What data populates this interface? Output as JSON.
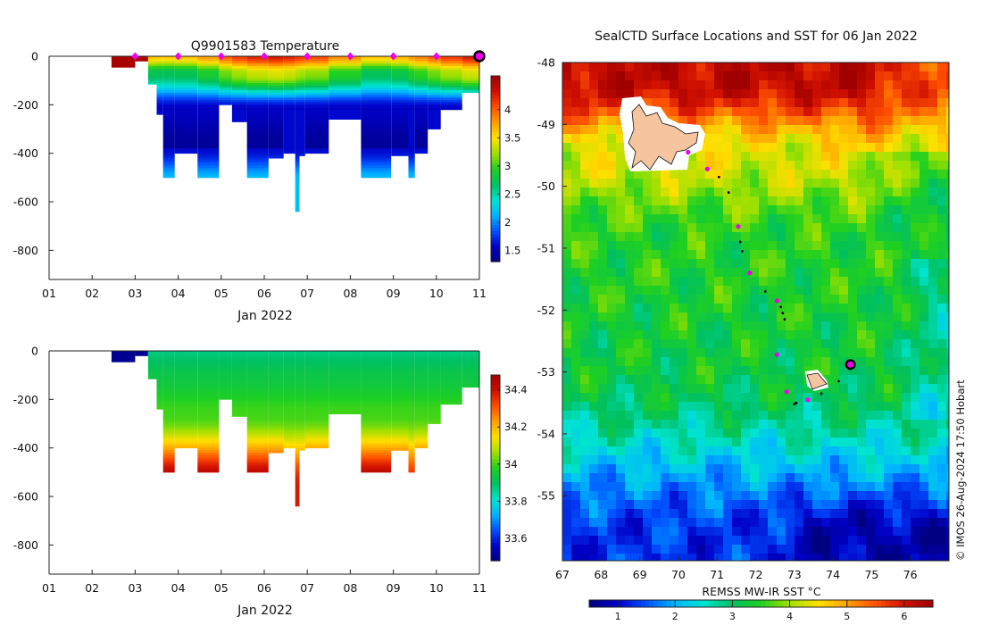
{
  "colors": {
    "temperature_ramp": [
      "#000080",
      "#0000c8",
      "#0050ff",
      "#00b4ff",
      "#00e4d0",
      "#00c060",
      "#20d020",
      "#a0e000",
      "#ffe000",
      "#ffa000",
      "#ff5000",
      "#d01000",
      "#a00000"
    ],
    "salinity_ramp": [
      "#000080",
      "#0000c8",
      "#0050ff",
      "#00b4ff",
      "#00e4d0",
      "#00c060",
      "#20d020",
      "#a0e000",
      "#ffe000",
      "#ffa000",
      "#ff5000",
      "#d01000",
      "#a00000"
    ],
    "sst_ramp": [
      "#000080",
      "#0000c8",
      "#0050ff",
      "#00b4ff",
      "#00e4d0",
      "#00c060",
      "#20d020",
      "#a0e000",
      "#ffe000",
      "#ffa000",
      "#ff5000",
      "#d01000",
      "#a00000"
    ],
    "marker": "#ee00ee",
    "land": "#f5c5a0"
  },
  "chart_data": [
    {
      "type": "heatmap",
      "id": "temperature_section",
      "title": "Q9901583  Temperature",
      "xlabel": "Jan 2022",
      "ylabel": "",
      "x_ticks": [
        "01",
        "02",
        "03",
        "04",
        "05",
        "06",
        "07",
        "08",
        "09",
        "10",
        "11"
      ],
      "y_ticks": [
        0,
        -200,
        -400,
        -600,
        -800
      ],
      "xlim": [
        1,
        11
      ],
      "ylim": [
        -920,
        0
      ],
      "colorbar": {
        "range": [
          1.3,
          4.6
        ],
        "ticks": [
          "1.5",
          "2",
          "2.5",
          "3",
          "3.5",
          "4"
        ],
        "tick_values": [
          1.5,
          2,
          2.5,
          3,
          3.5,
          4
        ]
      },
      "profile_markers_day": [
        3,
        4,
        5,
        6,
        7,
        8,
        9,
        10
      ],
      "last_position_day": 11,
      "profiles": [
        {
          "start": 2.45,
          "end": 3.0,
          "depth": 45,
          "kind": "warm"
        },
        {
          "start": 3.0,
          "end": 3.3,
          "depth": 20,
          "kind": "warm"
        },
        {
          "start": 3.3,
          "end": 3.5,
          "depth": 115,
          "kind": "std"
        },
        {
          "start": 3.5,
          "end": 3.65,
          "depth": 240,
          "kind": "std"
        },
        {
          "start": 3.65,
          "end": 3.92,
          "depth": 500,
          "kind": "deep"
        },
        {
          "start": 3.92,
          "end": 4.45,
          "depth": 400,
          "kind": "deep"
        },
        {
          "start": 4.45,
          "end": 4.95,
          "depth": 500,
          "kind": "deep"
        },
        {
          "start": 4.95,
          "end": 5.25,
          "depth": 200,
          "kind": "std"
        },
        {
          "start": 5.25,
          "end": 5.6,
          "depth": 270,
          "kind": "std"
        },
        {
          "start": 5.6,
          "end": 6.1,
          "depth": 500,
          "kind": "deep"
        },
        {
          "start": 6.1,
          "end": 6.45,
          "depth": 420,
          "kind": "deep"
        },
        {
          "start": 6.45,
          "end": 6.72,
          "depth": 400,
          "kind": "std"
        },
        {
          "start": 6.72,
          "end": 6.82,
          "depth": 640,
          "kind": "std"
        },
        {
          "start": 6.82,
          "end": 6.95,
          "depth": 410,
          "kind": "std"
        },
        {
          "start": 6.95,
          "end": 7.5,
          "depth": 400,
          "kind": "deep"
        },
        {
          "start": 7.5,
          "end": 8.25,
          "depth": 260,
          "kind": "std"
        },
        {
          "start": 8.25,
          "end": 8.95,
          "depth": 500,
          "kind": "deep"
        },
        {
          "start": 8.95,
          "end": 9.35,
          "depth": 410,
          "kind": "deep"
        },
        {
          "start": 9.35,
          "end": 9.5,
          "depth": 500,
          "kind": "std"
        },
        {
          "start": 9.5,
          "end": 9.8,
          "depth": 400,
          "kind": "deep"
        },
        {
          "start": 9.8,
          "end": 10.1,
          "depth": 300,
          "kind": "std"
        },
        {
          "start": 10.1,
          "end": 10.6,
          "depth": 220,
          "kind": "std"
        },
        {
          "start": 10.6,
          "end": 11.0,
          "depth": 150,
          "kind": "std"
        }
      ]
    },
    {
      "type": "heatmap",
      "id": "salinity_section",
      "title": "",
      "xlabel": "Jan 2022",
      "ylabel": "",
      "x_ticks": [
        "01",
        "02",
        "03",
        "04",
        "05",
        "06",
        "07",
        "08",
        "09",
        "10",
        "11"
      ],
      "y_ticks": [
        0,
        -200,
        -400,
        -600,
        -800
      ],
      "xlim": [
        1,
        11
      ],
      "ylim": [
        -920,
        0
      ],
      "colorbar": {
        "range": [
          33.48,
          34.48
        ],
        "ticks": [
          "33.6",
          "33.8",
          "34",
          "34.2",
          "34.4"
        ],
        "tick_values": [
          33.6,
          33.8,
          34.0,
          34.2,
          34.4
        ]
      }
    },
    {
      "type": "heatmap",
      "id": "sst_map",
      "title": "SealCTD Surface Locations and SST for 06 Jan 2022",
      "xlabel": "",
      "ylabel": "",
      "x_ticks": [
        "67",
        "68",
        "69",
        "70",
        "71",
        "72",
        "73",
        "74",
        "75",
        "76"
      ],
      "x_tick_values": [
        67,
        68,
        69,
        70,
        71,
        72,
        73,
        74,
        75,
        76
      ],
      "y_ticks": [
        "-48",
        "-49",
        "-50",
        "-51",
        "-52",
        "-53",
        "-54",
        "-55"
      ],
      "y_tick_values": [
        -48,
        -49,
        -50,
        -51,
        -52,
        -53,
        -54,
        -55
      ],
      "xlim": [
        67,
        77
      ],
      "ylim": [
        -56.05,
        -48
      ],
      "colorbar": {
        "label": "REMSS MW-IR SST °C",
        "range": [
          0.5,
          6.5
        ],
        "ticks": [
          "1",
          "2",
          "3",
          "4",
          "5",
          "6"
        ],
        "tick_values": [
          1,
          2,
          3,
          4,
          5,
          6
        ]
      },
      "profile_positions": [
        {
          "lon": 70.25,
          "lat": -49.45
        },
        {
          "lon": 70.75,
          "lat": -49.72
        },
        {
          "lon": 71.55,
          "lat": -50.65
        },
        {
          "lon": 71.85,
          "lat": -51.4
        },
        {
          "lon": 72.55,
          "lat": -51.85
        },
        {
          "lon": 72.55,
          "lat": -52.72
        },
        {
          "lon": 72.8,
          "lat": -53.32
        },
        {
          "lon": 73.35,
          "lat": -53.45
        }
      ],
      "track_positions": [
        {
          "lon": 71.05,
          "lat": -49.85
        },
        {
          "lon": 71.3,
          "lat": -50.1
        },
        {
          "lon": 71.6,
          "lat": -50.9
        },
        {
          "lon": 71.65,
          "lat": -51.05
        },
        {
          "lon": 72.25,
          "lat": -51.7
        },
        {
          "lon": 72.65,
          "lat": -51.95
        },
        {
          "lon": 72.7,
          "lat": -52.05
        },
        {
          "lon": 72.75,
          "lat": -52.15
        },
        {
          "lon": 73.0,
          "lat": -53.52
        },
        {
          "lon": 73.05,
          "lat": -53.5
        },
        {
          "lon": 73.7,
          "lat": -53.35
        },
        {
          "lon": 74.15,
          "lat": -53.15
        }
      ],
      "current_position": {
        "lon": 74.45,
        "lat": -52.88
      }
    }
  ],
  "credit": "© IMOS 26-Aug-2024 17:50 Hobart"
}
